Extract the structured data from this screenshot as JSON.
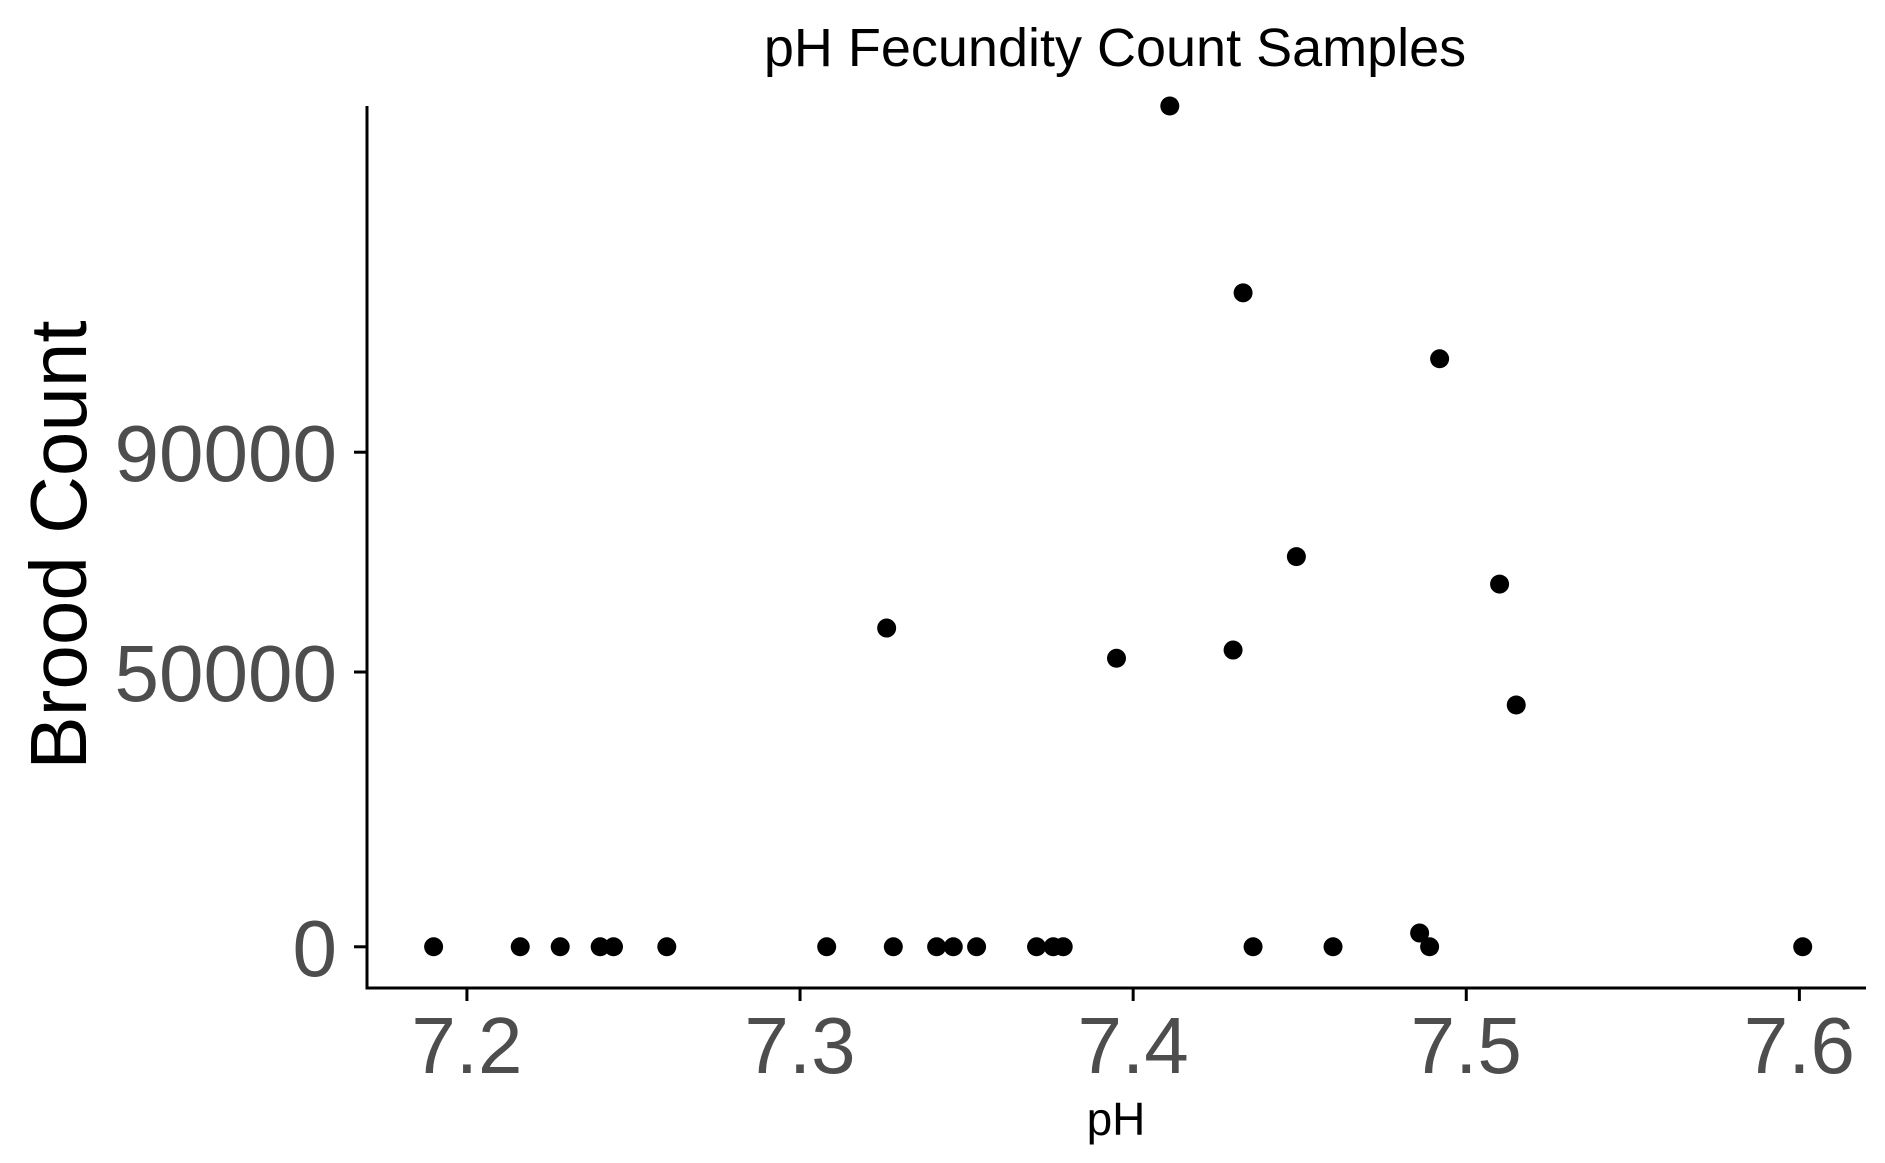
{
  "chart_data": {
    "type": "scatter",
    "title": "pH Fecundity Count Samples",
    "xlabel": "pH",
    "ylabel": "Brood Count",
    "xlim": [
      7.17,
      7.62
    ],
    "ylim": [
      -7500,
      153000
    ],
    "x_ticks": [
      7.2,
      7.3,
      7.4,
      7.5,
      7.6
    ],
    "x_tick_labels": [
      "7.2",
      "7.3",
      "7.4",
      "7.5",
      "7.6"
    ],
    "y_ticks": [
      0,
      50000,
      90000
    ],
    "y_tick_labels": [
      "0",
      "50000",
      "90000"
    ],
    "grid": false,
    "point_color": "#000000",
    "points": [
      {
        "x": 7.19,
        "y": 0
      },
      {
        "x": 7.216,
        "y": 0
      },
      {
        "x": 7.228,
        "y": 0
      },
      {
        "x": 7.24,
        "y": 0
      },
      {
        "x": 7.244,
        "y": 0
      },
      {
        "x": 7.26,
        "y": 0
      },
      {
        "x": 7.308,
        "y": 0
      },
      {
        "x": 7.326,
        "y": 58000
      },
      {
        "x": 7.328,
        "y": 0
      },
      {
        "x": 7.341,
        "y": 0
      },
      {
        "x": 7.346,
        "y": 0
      },
      {
        "x": 7.353,
        "y": 0
      },
      {
        "x": 7.371,
        "y": 0
      },
      {
        "x": 7.376,
        "y": 0
      },
      {
        "x": 7.379,
        "y": 0
      },
      {
        "x": 7.395,
        "y": 52500
      },
      {
        "x": 7.411,
        "y": 153000
      },
      {
        "x": 7.43,
        "y": 54000
      },
      {
        "x": 7.433,
        "y": 119000
      },
      {
        "x": 7.436,
        "y": 0
      },
      {
        "x": 7.449,
        "y": 71000
      },
      {
        "x": 7.46,
        "y": 0
      },
      {
        "x": 7.486,
        "y": 2500
      },
      {
        "x": 7.489,
        "y": 0
      },
      {
        "x": 7.492,
        "y": 107000
      },
      {
        "x": 7.51,
        "y": 66000
      },
      {
        "x": 7.515,
        "y": 44000
      },
      {
        "x": 7.601,
        "y": 0
      }
    ]
  }
}
